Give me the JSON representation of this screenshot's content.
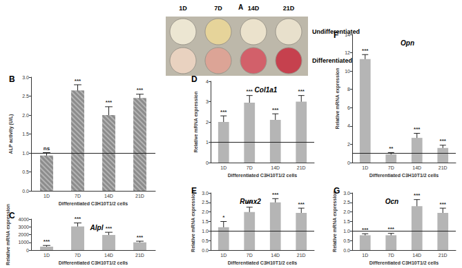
{
  "panel_a": {
    "label": "A",
    "columns": [
      "1D",
      "7D",
      "14D",
      "21D"
    ],
    "rows": [
      "Undifferentiated",
      "Differentiated"
    ]
  },
  "chart_data": [
    {
      "type": "bar",
      "panel": "B",
      "x_label": "Differentiated C3H10T1/2 cells",
      "y_label": "ALP activity (U/L)",
      "categories": [
        "1D",
        "7D",
        "14D",
        "21D"
      ],
      "values": [
        0.93,
        2.65,
        2.0,
        2.45
      ],
      "errors": [
        0.08,
        0.15,
        0.22,
        0.1
      ],
      "significance": [
        "ns",
        "***",
        "***",
        "***"
      ],
      "reference_line": 1,
      "color": "#8c8c8c",
      "ylim": [
        0,
        3.0
      ],
      "yticks": [
        {
          "value": 0,
          "label": "0.0"
        },
        {
          "value": 0.5,
          "label": "0.5"
        },
        {
          "value": 1,
          "label": "1.0"
        },
        {
          "value": 1.5,
          "label": "1.5"
        },
        {
          "value": 2,
          "label": "2.0"
        },
        {
          "value": 2.5,
          "label": "2.5"
        },
        {
          "value": 3,
          "label": "3.0"
        }
      ],
      "grid": false
    },
    {
      "type": "bar",
      "panel": "C",
      "title": "Alpl",
      "x_label": "Differentiated C3H10T1/2 cells",
      "y_label": "Relative mRNA expression",
      "categories": [
        "1D",
        "7D",
        "14D",
        "21D"
      ],
      "values": [
        450,
        3050,
        1950,
        1000
      ],
      "errors": [
        150,
        450,
        350,
        150
      ],
      "significance": [
        "***",
        "***",
        "***",
        "***"
      ],
      "color": "#b5b5b5",
      "ylim": [
        0,
        4000
      ],
      "yticks": [
        0,
        1000,
        2000,
        3000,
        4000
      ],
      "grid": false
    },
    {
      "type": "bar",
      "panel": "D",
      "title": "Col1a1",
      "x_label": "Differentiated C3H10T1/2 cells",
      "y_label": "Relative mRNA expression",
      "categories": [
        "1D",
        "7D",
        "14D",
        "21D"
      ],
      "values": [
        2.0,
        2.95,
        2.1,
        3.0
      ],
      "errors": [
        0.3,
        0.35,
        0.3,
        0.3
      ],
      "significance": [
        "***",
        "***",
        "***",
        "***"
      ],
      "reference_line": 1,
      "color": "#b5b5b5",
      "ylim": [
        0,
        4
      ],
      "yticks": [
        0,
        1,
        2,
        3,
        4
      ],
      "grid": false
    },
    {
      "type": "bar",
      "panel": "E",
      "title": "Runx2",
      "x_label": "Differentiated C3H10T1/2 cells",
      "y_label": "Relative mRNA expression",
      "categories": [
        "1D",
        "7D",
        "14D",
        "21D"
      ],
      "values": [
        1.2,
        2.0,
        2.5,
        1.95
      ],
      "errors": [
        0.3,
        0.25,
        0.2,
        0.25
      ],
      "significance": [
        "*",
        "***",
        "***",
        "***"
      ],
      "reference_line": 1,
      "color": "#b5b5b5",
      "ylim": [
        0,
        3.0
      ],
      "yticks": [
        {
          "value": 0,
          "label": "0.0"
        },
        {
          "value": 0.5,
          "label": "0.5"
        },
        {
          "value": 1,
          "label": "1.0"
        },
        {
          "value": 1.5,
          "label": "1.5"
        },
        {
          "value": 2,
          "label": "2.0"
        },
        {
          "value": 2.5,
          "label": "2.5"
        },
        {
          "value": 3,
          "label": "3.0"
        }
      ],
      "grid": false
    },
    {
      "type": "bar",
      "panel": "F",
      "title": "Opn",
      "x_label": "Differentiated C3H10T1/2 cells",
      "y_label": "Relative mRNA expression",
      "categories": [
        "1D",
        "7D",
        "14D",
        "21D"
      ],
      "values": [
        11.3,
        0.9,
        2.7,
        1.6
      ],
      "errors": [
        0.5,
        0.2,
        0.5,
        0.3
      ],
      "significance": [
        "***",
        "**",
        "***",
        "***"
      ],
      "reference_line": 1,
      "color": "#b5b5b5",
      "ylim": [
        0,
        14
      ],
      "yticks": [
        0,
        2,
        4,
        6,
        8,
        10,
        12,
        14
      ],
      "grid": false
    },
    {
      "type": "bar",
      "panel": "G",
      "title": "Ocn",
      "x_label": "Differentiated C3H10T1/2 cells",
      "y_label": "Relative mRNA expression",
      "categories": [
        "1D",
        "7D",
        "14D",
        "21D"
      ],
      "values": [
        0.78,
        0.78,
        2.3,
        1.95
      ],
      "errors": [
        0.08,
        0.1,
        0.35,
        0.25
      ],
      "significance": [
        "***",
        "***",
        "***",
        "***"
      ],
      "reference_line": 1,
      "color": "#b5b5b5",
      "ylim": [
        0,
        3.0
      ],
      "yticks": [
        {
          "value": 0,
          "label": "0.0"
        },
        {
          "value": 0.5,
          "label": "0.5"
        },
        {
          "value": 1,
          "label": "1.0"
        },
        {
          "value": 1.5,
          "label": "1.5"
        },
        {
          "value": 2,
          "label": "2.0"
        },
        {
          "value": 2.5,
          "label": "2.5"
        },
        {
          "value": 3,
          "label": "3.0"
        }
      ],
      "grid": false
    }
  ]
}
